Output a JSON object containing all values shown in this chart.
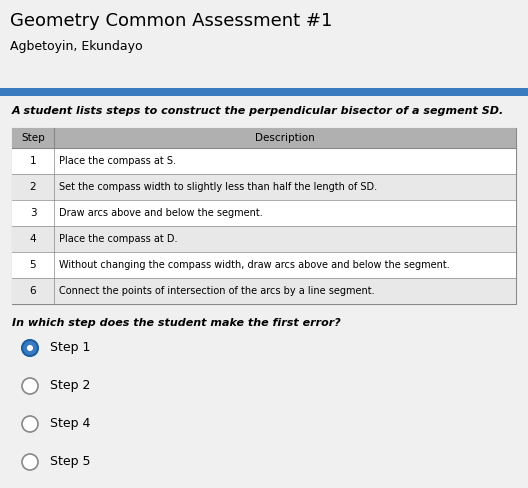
{
  "title": "Geometry Common Assessment #1",
  "subtitle": "Agbetoyin, Ekundayo",
  "question": "A student lists steps to construct the perpendicular bisector of a segment SD.",
  "question_italic_part": "SD",
  "table_headers": [
    "Step",
    "Description"
  ],
  "table_rows": [
    [
      "1",
      "Place the compass at S."
    ],
    [
      "2",
      "Set the compass width to slightly less than half the length of SD."
    ],
    [
      "3",
      "Draw arcs above and below the segment."
    ],
    [
      "4",
      "Place the compass at D."
    ],
    [
      "5",
      "Without changing the compass width, draw arcs above and below the segment."
    ],
    [
      "6",
      "Connect the points of intersection of the arcs by a line segment."
    ]
  ],
  "answer_question": "In which step does the student make the first error?",
  "choices": [
    "Step 1",
    "Step 2",
    "Step 4",
    "Step 5"
  ],
  "selected_choice": 0,
  "white_bg_color": "#f0f0f0",
  "gray_bg_color": "#cccccc",
  "header_bar_color": "#3a7abf",
  "table_header_bg": "#b0b0b0",
  "table_row_even_bg": "#ffffff",
  "table_row_odd_bg": "#e8e8e8",
  "table_border_color": "#888888",
  "selected_dot_fill": "#3a7abf",
  "selected_dot_border": "#1a5fa0",
  "unselected_dot_fill": "#ffffff",
  "unselected_dot_border": "#888888",
  "title_fontsize": 13,
  "subtitle_fontsize": 9,
  "question_fontsize": 8,
  "table_fontsize": 7.5,
  "answer_q_fontsize": 8,
  "choice_fontsize": 9
}
